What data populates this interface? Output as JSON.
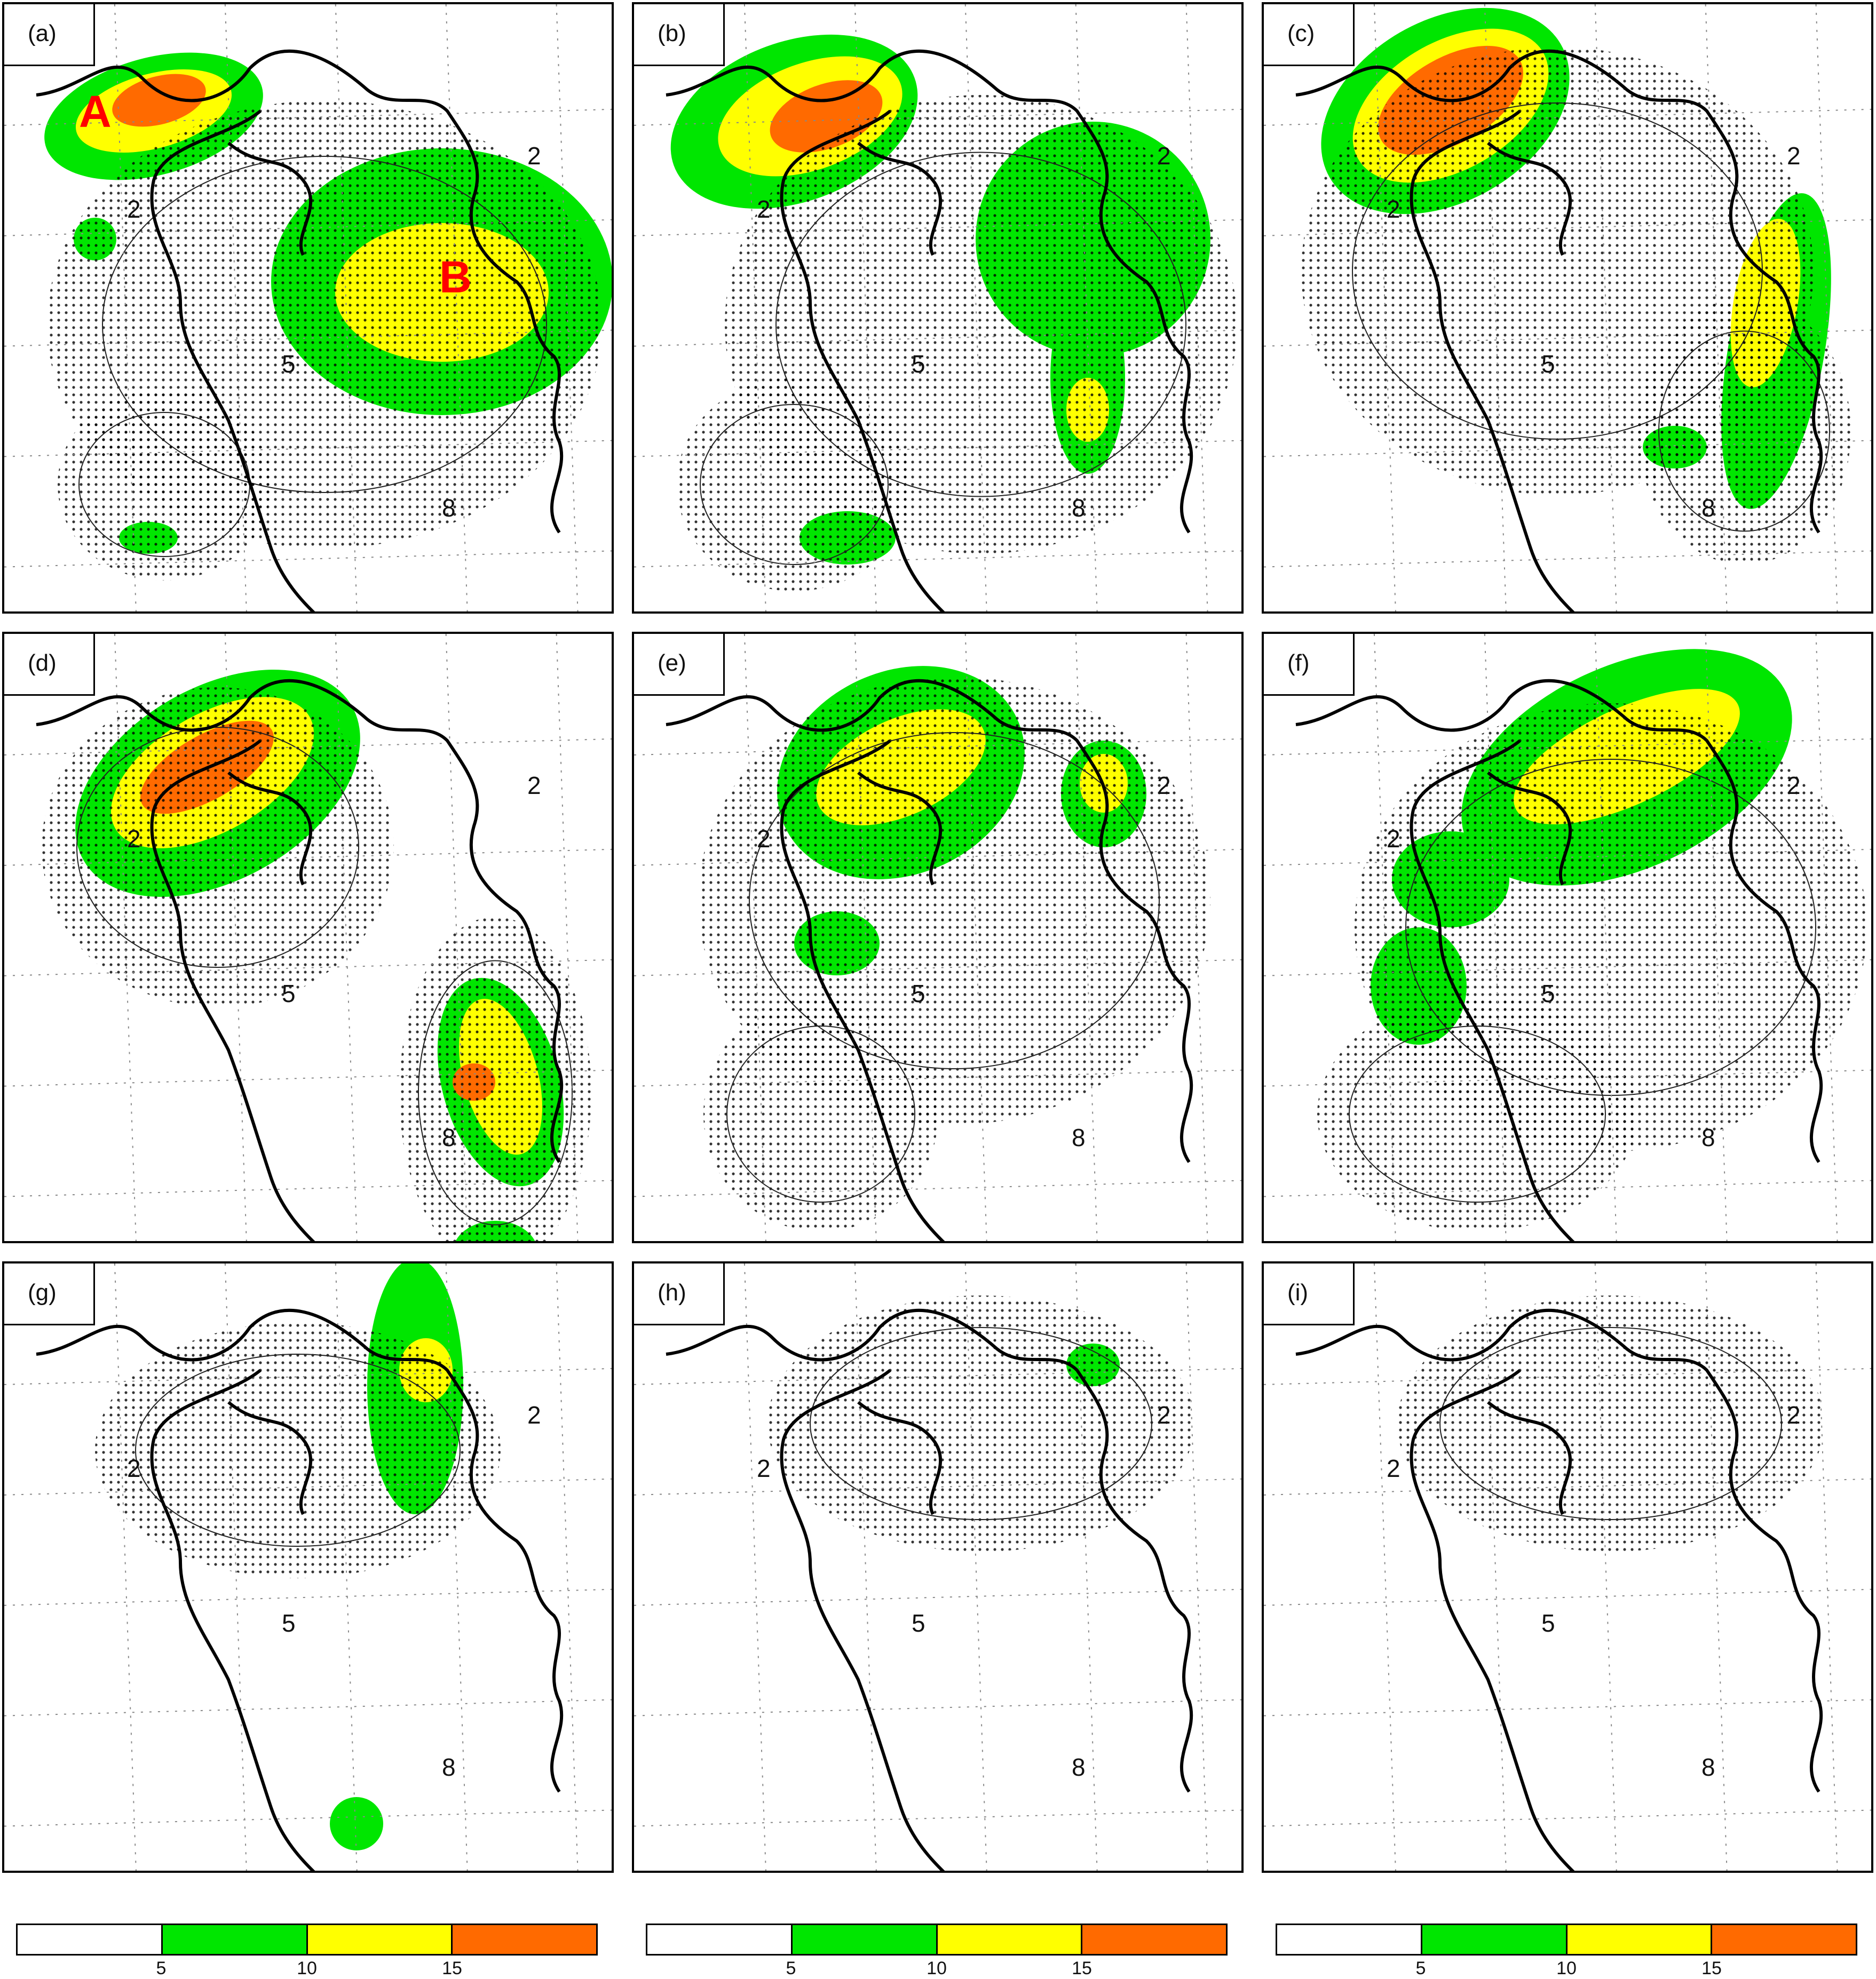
{
  "panels": [
    {
      "id": "a",
      "label": "(a)",
      "markers": [
        "A",
        "B"
      ]
    },
    {
      "id": "b",
      "label": "(b)",
      "markers": []
    },
    {
      "id": "c",
      "label": "(c)",
      "markers": []
    },
    {
      "id": "d",
      "label": "(d)",
      "markers": []
    },
    {
      "id": "e",
      "label": "(e)",
      "markers": []
    },
    {
      "id": "f",
      "label": "(f)",
      "markers": []
    },
    {
      "id": "g",
      "label": "(g)",
      "markers": []
    },
    {
      "id": "h",
      "label": "(h)",
      "markers": []
    },
    {
      "id": "i",
      "label": "(i)",
      "markers": []
    }
  ],
  "contour_labels": [
    "2",
    "5",
    "8"
  ],
  "colorbar": {
    "ticks": [
      "5",
      "10",
      "15"
    ],
    "colors": [
      "#ffffff",
      "#00e600",
      "#ffff00",
      "#ff6a00"
    ]
  },
  "colors": {
    "low": "#00e600",
    "mid": "#ffff00",
    "high": "#ff6a00",
    "marker": "#ff0000"
  }
}
